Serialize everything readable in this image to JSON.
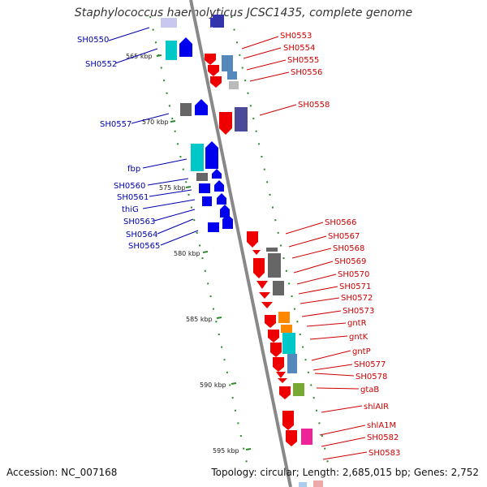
{
  "title": "Staphylococcus haemolyticus JCSC1435, complete genome",
  "accession": "Accession: NC_007168",
  "topology": "Topology: circular; Length: 2,685,015 bp; Genes: 2,752",
  "ruler": [
    "565 kbp",
    "570 kbp",
    "575 kbp",
    "580 kbp",
    "585 kbp",
    "590 kbp",
    "595 kbp"
  ],
  "colors": {
    "left_label": "#0000aa",
    "right_label": "#cc0000",
    "track": "#888888",
    "dot": "#2a8a2a"
  },
  "left_genes": [
    "SH0550",
    "SH0552",
    "SH0557",
    "fbp",
    "SH0560",
    "SH0561",
    "thiG",
    "SH0563",
    "SH0564",
    "SH0565"
  ],
  "right_genes": [
    "SH0553",
    "SH0554",
    "SH0555",
    "SH0556",
    "SH0558",
    "SH0566",
    "SH0567",
    "SH0568",
    "SH0569",
    "SH0570",
    "SH0571",
    "SH0572",
    "SH0573",
    "gntR",
    "gntK",
    "gntP",
    "SH0577",
    "SH0578",
    "gtaB",
    "shlAIR",
    "shlA1M",
    "SH0582",
    "SH0583"
  ]
}
